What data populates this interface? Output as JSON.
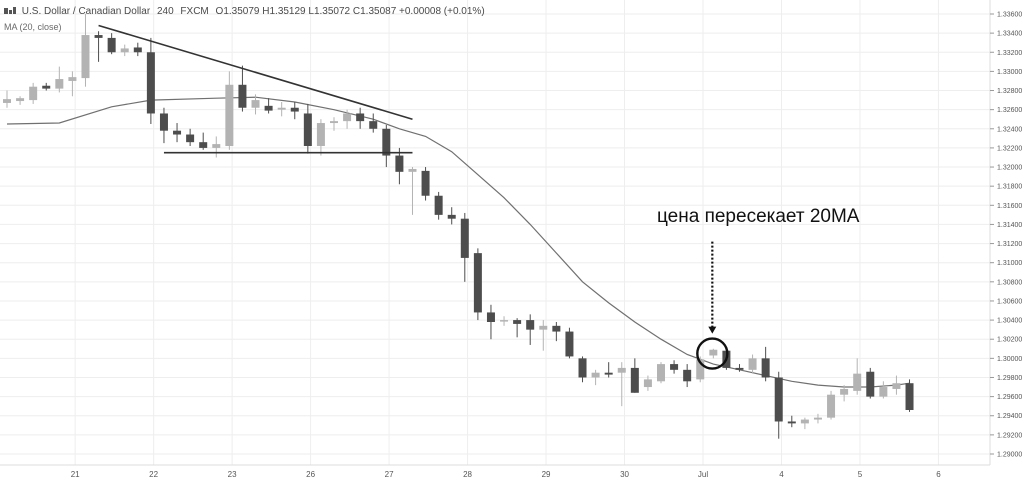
{
  "header": {
    "symbol_title": "U.S. Dollar / Canadian Dollar",
    "interval": "240",
    "source": "FXCM",
    "ohlc_text": "O1.35079 H1.35129 L1.35072 C1.35087 +0.00008 (+0.01%)",
    "indicator_label": "MA (20, close)"
  },
  "colors": {
    "bull": "#b3b3b3",
    "bear": "#4d4d4d",
    "ma": "#707070",
    "trendline": "#333333",
    "grid": "#eeeeee"
  },
  "chart_data": {
    "type": "candlestick",
    "title": "U.S. Dollar / Canadian Dollar",
    "y_axis": {
      "min": 1.288,
      "max": 1.336,
      "ticks": [
        "1.33600",
        "1.33400",
        "1.33200",
        "1.33000",
        "1.32800",
        "1.32600",
        "1.32400",
        "1.32200",
        "1.32000",
        "1.31800",
        "1.31600",
        "1.31400",
        "1.31200",
        "1.31000",
        "1.30800",
        "1.30600",
        "1.30400",
        "1.30200",
        "1.30000",
        "1.29800",
        "1.29600",
        "1.29400",
        "1.29200",
        "1.29000"
      ]
    },
    "x_axis": {
      "labels": [
        {
          "text": "21",
          "index": 2
        },
        {
          "text": "22",
          "index": 8
        },
        {
          "text": "23",
          "index": 14
        },
        {
          "text": "26",
          "index": 20
        },
        {
          "text": "27",
          "index": 26
        },
        {
          "text": "28",
          "index": 32
        },
        {
          "text": "29",
          "index": 38
        },
        {
          "text": "30",
          "index": 44
        },
        {
          "text": "Jul",
          "index": 50
        },
        {
          "text": "4",
          "index": 56
        },
        {
          "text": "5",
          "index": 62
        },
        {
          "text": "6",
          "index": 68
        }
      ]
    },
    "candles": [
      {
        "o": 1.3267,
        "h": 1.328,
        "l": 1.3262,
        "c": 1.3271
      },
      {
        "o": 1.3269,
        "h": 1.3274,
        "l": 1.3265,
        "c": 1.3272
      },
      {
        "o": 1.327,
        "h": 1.3288,
        "l": 1.3266,
        "c": 1.3284
      },
      {
        "o": 1.3285,
        "h": 1.3288,
        "l": 1.328,
        "c": 1.3282
      },
      {
        "o": 1.3282,
        "h": 1.3305,
        "l": 1.3278,
        "c": 1.3292
      },
      {
        "o": 1.329,
        "h": 1.33,
        "l": 1.3274,
        "c": 1.3294
      },
      {
        "o": 1.3293,
        "h": 1.336,
        "l": 1.3284,
        "c": 1.3338
      },
      {
        "o": 1.3338,
        "h": 1.3342,
        "l": 1.331,
        "c": 1.3335
      },
      {
        "o": 1.3335,
        "h": 1.334,
        "l": 1.3318,
        "c": 1.332
      },
      {
        "o": 1.332,
        "h": 1.3328,
        "l": 1.3316,
        "c": 1.3324
      },
      {
        "o": 1.3325,
        "h": 1.333,
        "l": 1.3316,
        "c": 1.332
      },
      {
        "o": 1.332,
        "h": 1.3335,
        "l": 1.3245,
        "c": 1.3256
      },
      {
        "o": 1.3256,
        "h": 1.3262,
        "l": 1.3225,
        "c": 1.3238
      },
      {
        "o": 1.3238,
        "h": 1.3246,
        "l": 1.3226,
        "c": 1.3234
      },
      {
        "o": 1.3234,
        "h": 1.324,
        "l": 1.3222,
        "c": 1.3226
      },
      {
        "o": 1.3226,
        "h": 1.3236,
        "l": 1.3218,
        "c": 1.322
      },
      {
        "o": 1.322,
        "h": 1.3232,
        "l": 1.321,
        "c": 1.3224
      },
      {
        "o": 1.3222,
        "h": 1.33,
        "l": 1.3218,
        "c": 1.3286
      },
      {
        "o": 1.3286,
        "h": 1.3306,
        "l": 1.3258,
        "c": 1.3262
      },
      {
        "o": 1.3262,
        "h": 1.3276,
        "l": 1.3255,
        "c": 1.327
      },
      {
        "o": 1.3264,
        "h": 1.3272,
        "l": 1.3256,
        "c": 1.3259
      },
      {
        "o": 1.326,
        "h": 1.3268,
        "l": 1.3253,
        "c": 1.3262
      },
      {
        "o": 1.3262,
        "h": 1.3268,
        "l": 1.325,
        "c": 1.3258
      },
      {
        "o": 1.3256,
        "h": 1.3266,
        "l": 1.3214,
        "c": 1.3222
      },
      {
        "o": 1.3222,
        "h": 1.325,
        "l": 1.3212,
        "c": 1.3246
      },
      {
        "o": 1.3246,
        "h": 1.3252,
        "l": 1.3238,
        "c": 1.3248
      },
      {
        "o": 1.3248,
        "h": 1.326,
        "l": 1.324,
        "c": 1.3256
      },
      {
        "o": 1.3256,
        "h": 1.3262,
        "l": 1.324,
        "c": 1.3248
      },
      {
        "o": 1.3248,
        "h": 1.3256,
        "l": 1.3236,
        "c": 1.324
      },
      {
        "o": 1.324,
        "h": 1.3244,
        "l": 1.32,
        "c": 1.3212
      },
      {
        "o": 1.3212,
        "h": 1.322,
        "l": 1.3182,
        "c": 1.3195
      },
      {
        "o": 1.3195,
        "h": 1.32,
        "l": 1.315,
        "c": 1.3198
      },
      {
        "o": 1.3196,
        "h": 1.32,
        "l": 1.3165,
        "c": 1.317
      },
      {
        "o": 1.317,
        "h": 1.3174,
        "l": 1.3145,
        "c": 1.315
      },
      {
        "o": 1.315,
        "h": 1.3158,
        "l": 1.314,
        "c": 1.3146
      },
      {
        "o": 1.3146,
        "h": 1.3152,
        "l": 1.308,
        "c": 1.3105
      },
      {
        "o": 1.311,
        "h": 1.3115,
        "l": 1.304,
        "c": 1.3048
      },
      {
        "o": 1.3048,
        "h": 1.3056,
        "l": 1.302,
        "c": 1.3038
      },
      {
        "o": 1.304,
        "h": 1.3044,
        "l": 1.3034,
        "c": 1.304
      },
      {
        "o": 1.304,
        "h": 1.3042,
        "l": 1.3022,
        "c": 1.3036
      },
      {
        "o": 1.304,
        "h": 1.3046,
        "l": 1.3014,
        "c": 1.303
      },
      {
        "o": 1.303,
        "h": 1.304,
        "l": 1.3008,
        "c": 1.3034
      },
      {
        "o": 1.3034,
        "h": 1.3038,
        "l": 1.3018,
        "c": 1.3028
      },
      {
        "o": 1.3028,
        "h": 1.3032,
        "l": 1.3,
        "c": 1.3002
      },
      {
        "o": 1.3,
        "h": 1.3002,
        "l": 1.2975,
        "c": 1.298
      },
      {
        "o": 1.298,
        "h": 1.2988,
        "l": 1.2972,
        "c": 1.2985
      },
      {
        "o": 1.2985,
        "h": 1.2996,
        "l": 1.298,
        "c": 1.2983
      },
      {
        "o": 1.2985,
        "h": 1.2996,
        "l": 1.295,
        "c": 1.299
      },
      {
        "o": 1.299,
        "h": 1.3,
        "l": 1.2964,
        "c": 1.2964
      },
      {
        "o": 1.297,
        "h": 1.2982,
        "l": 1.2966,
        "c": 1.2978
      },
      {
        "o": 1.2976,
        "h": 1.2996,
        "l": 1.2974,
        "c": 1.2994
      },
      {
        "o": 1.2994,
        "h": 1.2998,
        "l": 1.2984,
        "c": 1.2988
      },
      {
        "o": 1.2988,
        "h": 1.2994,
        "l": 1.297,
        "c": 1.2976
      },
      {
        "o": 1.2978,
        "h": 1.3002,
        "l": 1.2975,
        "c": 1.2999
      },
      {
        "o": 1.3003,
        "h": 1.301,
        "l": 1.3,
        "c": 1.3009
      },
      {
        "o": 1.3008,
        "h": 1.301,
        "l": 1.2988,
        "c": 1.299
      },
      {
        "o": 1.299,
        "h": 1.2994,
        "l": 1.2986,
        "c": 1.2988
      },
      {
        "o": 1.2988,
        "h": 1.3004,
        "l": 1.2984,
        "c": 1.3
      },
      {
        "o": 1.3,
        "h": 1.3012,
        "l": 1.2976,
        "c": 1.298
      },
      {
        "o": 1.298,
        "h": 1.2986,
        "l": 1.2916,
        "c": 1.2934
      },
      {
        "o": 1.2934,
        "h": 1.294,
        "l": 1.2928,
        "c": 1.2932
      },
      {
        "o": 1.2932,
        "h": 1.2938,
        "l": 1.2926,
        "c": 1.2936
      },
      {
        "o": 1.2936,
        "h": 1.2942,
        "l": 1.2932,
        "c": 1.2938
      },
      {
        "o": 1.2938,
        "h": 1.2966,
        "l": 1.2936,
        "c": 1.2962
      },
      {
        "o": 1.2962,
        "h": 1.2972,
        "l": 1.2955,
        "c": 1.2968
      },
      {
        "o": 1.2966,
        "h": 1.3,
        "l": 1.2962,
        "c": 1.2984
      },
      {
        "o": 1.2986,
        "h": 1.299,
        "l": 1.2958,
        "c": 1.296
      },
      {
        "o": 1.296,
        "h": 1.2976,
        "l": 1.2958,
        "c": 1.297
      },
      {
        "o": 1.2968,
        "h": 1.2982,
        "l": 1.2962,
        "c": 1.2974
      },
      {
        "o": 1.2974,
        "h": 1.2978,
        "l": 1.2944,
        "c": 1.2946
      }
    ],
    "moving_average": {
      "name": "MA (20, close)",
      "points": [
        [
          0,
          1.3245
        ],
        [
          4,
          1.3246
        ],
        [
          8,
          1.3263
        ],
        [
          11,
          1.327
        ],
        [
          16,
          1.3272
        ],
        [
          19,
          1.3273
        ],
        [
          22,
          1.3268
        ],
        [
          25,
          1.326
        ],
        [
          28,
          1.325
        ],
        [
          30,
          1.324
        ],
        [
          32,
          1.3232
        ],
        [
          34,
          1.3216
        ],
        [
          36,
          1.3192
        ],
        [
          38,
          1.3168
        ],
        [
          40,
          1.314
        ],
        [
          42,
          1.311
        ],
        [
          44,
          1.308
        ],
        [
          46,
          1.3058
        ],
        [
          48,
          1.3038
        ],
        [
          50,
          1.302
        ],
        [
          52,
          1.3004
        ],
        [
          54,
          1.2994
        ],
        [
          56,
          1.2988
        ],
        [
          58,
          1.2982
        ],
        [
          60,
          1.2976
        ],
        [
          62,
          1.2972
        ],
        [
          64,
          1.297
        ],
        [
          66,
          1.297
        ],
        [
          68,
          1.2972
        ],
        [
          69,
          1.2974
        ]
      ]
    },
    "trendlines": [
      {
        "from": [
          7,
          1.3348
        ],
        "to": [
          31,
          1.325
        ],
        "role": "resistance"
      },
      {
        "from": [
          12,
          1.3215
        ],
        "to": [
          31,
          1.3215
        ],
        "role": "support"
      }
    ],
    "annotation": {
      "text": "цена пересекает 20МА",
      "target": [
        54,
        1.3005
      ],
      "arrow_from": 1.3122
    }
  }
}
